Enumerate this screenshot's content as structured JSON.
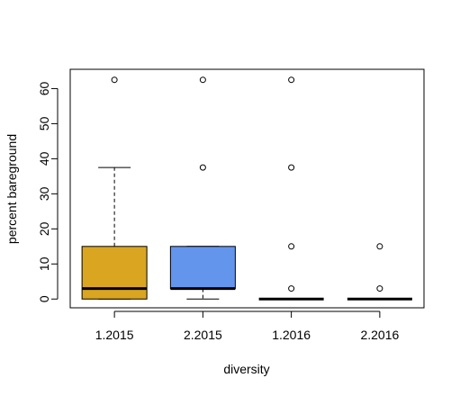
{
  "chart_data": {
    "type": "boxplot",
    "xlabel": "diversity",
    "ylabel": "percent bareground",
    "ylim": [
      -2.5,
      65.5
    ],
    "yticks": [
      0,
      10,
      20,
      30,
      40,
      50,
      60
    ],
    "grid": false,
    "legend": "none",
    "categories": [
      "1.2015",
      "2.2015",
      "1.2016",
      "2.2016"
    ],
    "boxes": [
      {
        "category": "1.2015",
        "color": "#DAA520",
        "whisker_low": 0,
        "q1": 0,
        "median": 3,
        "q3": 15,
        "whisker_high": 37.5,
        "outliers": [
          62.5
        ]
      },
      {
        "category": "2.2015",
        "color": "#6495ED",
        "whisker_low": 0,
        "q1": 3,
        "median": 3,
        "q3": 15,
        "whisker_high": 15,
        "outliers": [
          37.5,
          62.5
        ]
      },
      {
        "category": "1.2016",
        "color": "#FFFFFF",
        "whisker_low": 0,
        "q1": 0,
        "median": 0,
        "q3": 0,
        "whisker_high": 0,
        "outliers": [
          3,
          15,
          37.5,
          62.5
        ]
      },
      {
        "category": "2.2016",
        "color": "#FFFFFF",
        "whisker_low": 0,
        "q1": 0,
        "median": 0,
        "q3": 0,
        "whisker_high": 0,
        "outliers": [
          3,
          15
        ]
      }
    ]
  }
}
